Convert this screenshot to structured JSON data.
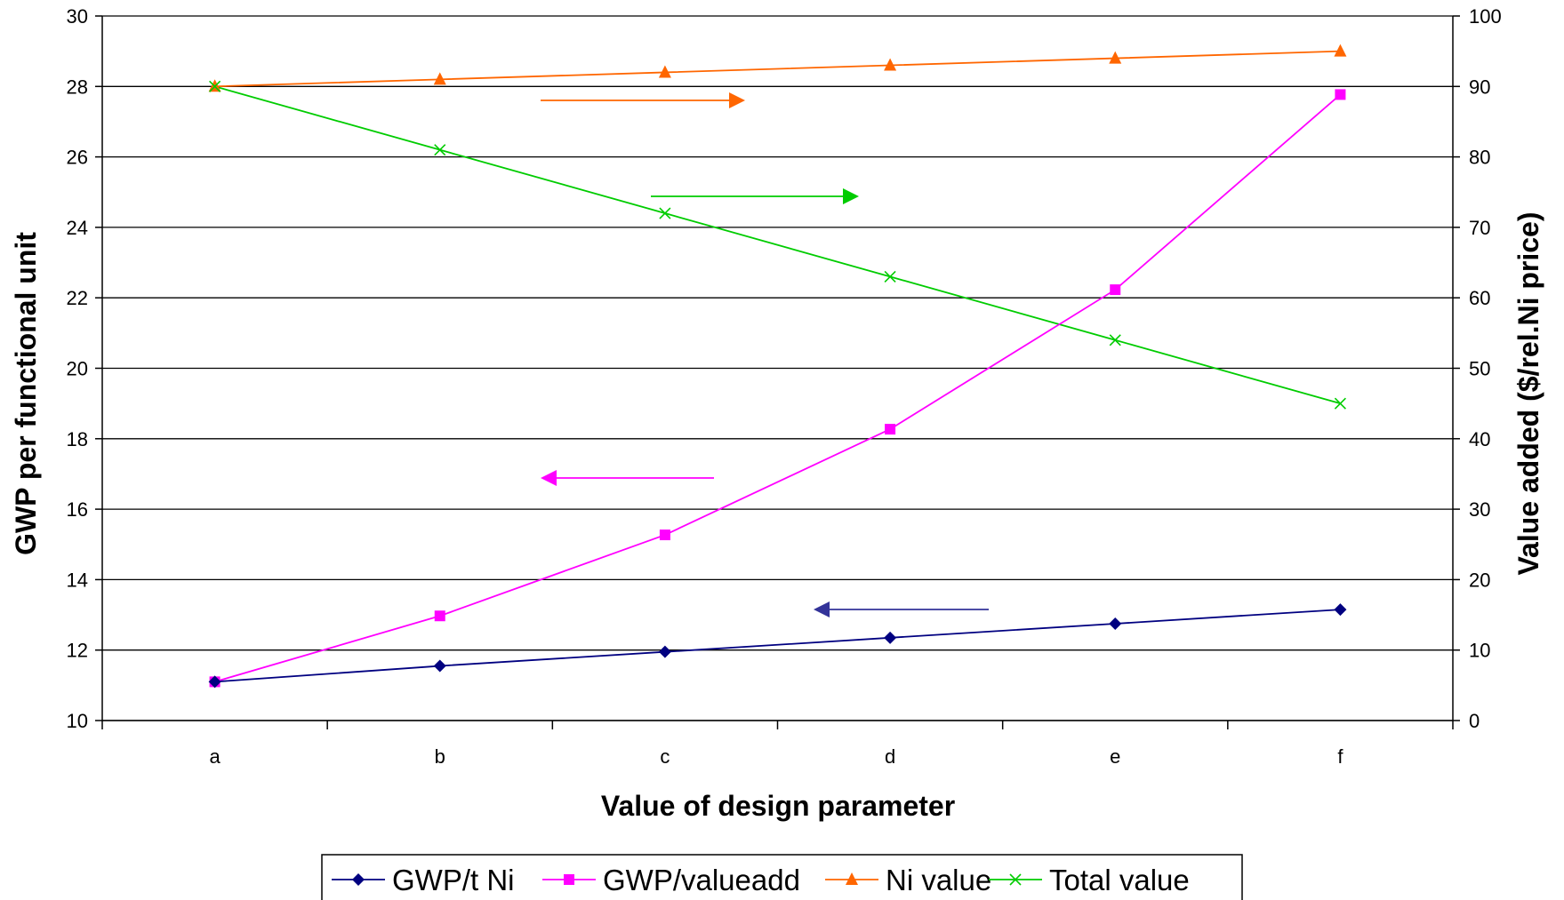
{
  "chart_data": {
    "type": "line",
    "title": "",
    "xlabel": "Value of design parameter",
    "ylabel_left": "GWP per functional unit",
    "ylabel_right": "Value added ($/rel.Ni price)",
    "categories": [
      "a",
      "b",
      "c",
      "d",
      "e",
      "f"
    ],
    "ylim_left": [
      10,
      30
    ],
    "ylim_right": [
      0,
      100
    ],
    "yticks_left": [
      10,
      12,
      14,
      16,
      18,
      20,
      22,
      24,
      26,
      28,
      30
    ],
    "yticks_right": [
      0,
      10,
      20,
      30,
      40,
      50,
      60,
      70,
      80,
      90,
      100
    ],
    "grid": true,
    "legend_position": "bottom",
    "series": [
      {
        "name": "GWP/t Ni",
        "axis": "left",
        "color": "#000080",
        "marker": "diamond",
        "values": [
          11.1,
          11.55,
          11.95,
          12.35,
          12.75,
          13.15
        ]
      },
      {
        "name": "GWP/valueadd",
        "axis": "left",
        "color": "#FF00FF",
        "marker": "square",
        "values": [
          11.1,
          12.97,
          15.27,
          18.27,
          22.23,
          27.77
        ]
      },
      {
        "name": "Ni value",
        "axis": "right",
        "color": "#FF6600",
        "marker": "triangle",
        "values": [
          90,
          91,
          92,
          93,
          94,
          95
        ]
      },
      {
        "name": "Total value",
        "axis": "right",
        "color": "#00CC00",
        "marker": "x",
        "values": [
          90,
          81,
          72,
          63,
          54,
          45
        ]
      }
    ],
    "annotations": [
      {
        "type": "arrow",
        "direction": "right",
        "series": "Ni value",
        "color": "#FF6600"
      },
      {
        "type": "arrow",
        "direction": "right",
        "series": "Total value",
        "color": "#00CC00"
      },
      {
        "type": "arrow",
        "direction": "left",
        "series": "GWP/valueadd",
        "color": "#FF00FF"
      },
      {
        "type": "arrow",
        "direction": "left",
        "series": "GWP/t Ni",
        "color": "#333399"
      }
    ]
  }
}
